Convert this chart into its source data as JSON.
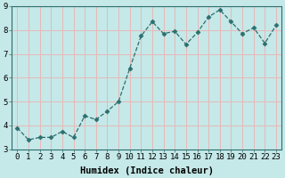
{
  "x": [
    0,
    1,
    2,
    3,
    4,
    5,
    6,
    7,
    8,
    9,
    10,
    11,
    12,
    13,
    14,
    15,
    16,
    17,
    18,
    19,
    20,
    21,
    22,
    23
  ],
  "y": [
    3.9,
    3.4,
    3.5,
    3.5,
    3.75,
    3.5,
    4.4,
    4.25,
    4.6,
    5.0,
    6.4,
    7.75,
    8.35,
    7.85,
    7.95,
    7.4,
    7.9,
    8.55,
    8.85,
    8.35,
    7.85,
    8.1,
    7.45,
    8.2
  ],
  "line_color": "#2d6e6e",
  "marker": "D",
  "marker_size": 2.5,
  "bg_color": "#c5e8e8",
  "grid_color_h": "#e8b8b8",
  "grid_color_v": "#e8b8b8",
  "xlabel": "Humidex (Indice chaleur)",
  "ylabel": "",
  "xlim": [
    -0.5,
    23.5
  ],
  "ylim": [
    3.0,
    9.0
  ],
  "yticks": [
    3,
    4,
    5,
    6,
    7,
    8,
    9
  ],
  "xticks": [
    0,
    1,
    2,
    3,
    4,
    5,
    6,
    7,
    8,
    9,
    10,
    11,
    12,
    13,
    14,
    15,
    16,
    17,
    18,
    19,
    20,
    21,
    22,
    23
  ],
  "tick_label_fontsize": 6.5,
  "xlabel_fontsize": 7.5
}
